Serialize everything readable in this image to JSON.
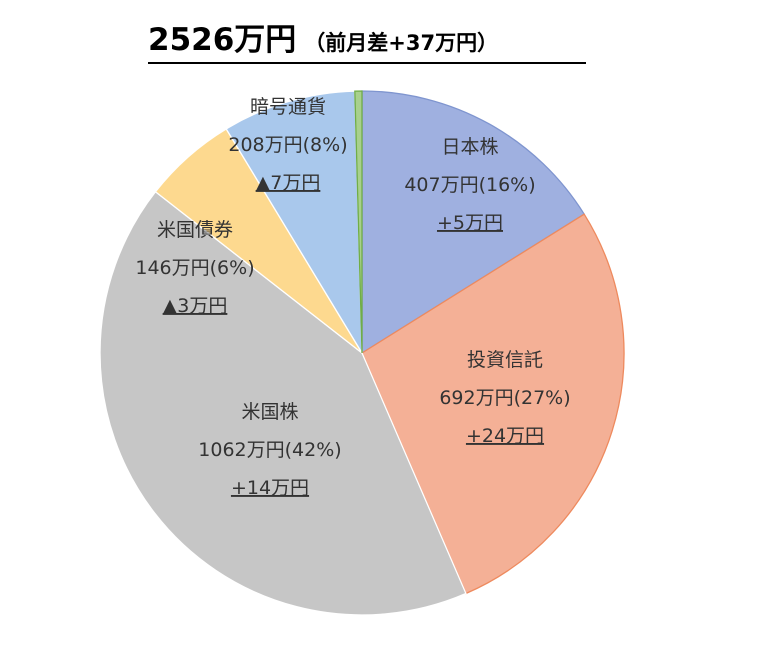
{
  "title": {
    "main": "2526万円",
    "sub": "（前月差+37万円）"
  },
  "chart_data": {
    "type": "pie",
    "title": "2526万円（前月差+37万円）",
    "start_angle_deg": 0,
    "direction": "clockwise",
    "slices": [
      {
        "name": "日本株",
        "value": 407,
        "value_label": "407万円(16%)",
        "change": "+5万円",
        "color": "#9fb0e0",
        "stroke": "#7f95cf"
      },
      {
        "name": "投資信託",
        "value": 692,
        "value_label": "692万円(27%)",
        "change": "+24万円",
        "color": "#f4b096",
        "stroke": "#ee8a5e"
      },
      {
        "name": "米国株",
        "value": 1062,
        "value_label": "1062万円(42%)",
        "change": "+14万円",
        "color": "#c6c6c6",
        "stroke": "#ffffff"
      },
      {
        "name": "米国債券",
        "value": 146,
        "value_label": "146万円(6%)",
        "change": "▲3万円",
        "color": "#fdd98f",
        "stroke": "#ffffff"
      },
      {
        "name": "暗号通貨",
        "value": 208,
        "value_label": "208万円(8%)",
        "change": "▲7万円",
        "color": "#a9c8ec",
        "stroke": "#ffffff"
      },
      {
        "name": "",
        "value": 11,
        "value_label": "",
        "change": "",
        "color": "#a8d08d",
        "stroke": "#70ad47"
      }
    ]
  }
}
